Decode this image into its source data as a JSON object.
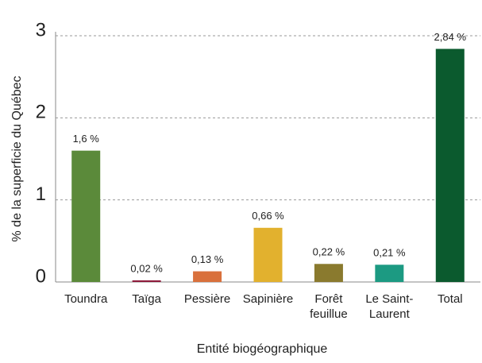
{
  "chart_data": {
    "type": "bar",
    "x_label": "Entité biogéographique",
    "y_label": "% de la superficie du Québec",
    "categories": [
      "Toundra",
      "Taïga",
      "Pessière",
      "Sapinière",
      "Forêt\nfeuillue",
      "Le Saint-\nLaurent",
      "Total"
    ],
    "values": [
      1.6,
      0.02,
      0.13,
      0.66,
      0.22,
      0.21,
      2.84
    ],
    "value_labels": [
      "1,6 %",
      "0,02 %",
      "0,13 %",
      "0,66 %",
      "0,22 %",
      "0,21 %",
      "2,84 %"
    ],
    "colors": [
      "#5b8a3a",
      "#8e1c3c",
      "#d9703c",
      "#e2b12e",
      "#8a7a2e",
      "#1c9a82",
      "#0b5a2e"
    ],
    "ylim": [
      0,
      3
    ],
    "yticks": [
      0,
      1,
      2,
      3
    ],
    "grid": true
  }
}
